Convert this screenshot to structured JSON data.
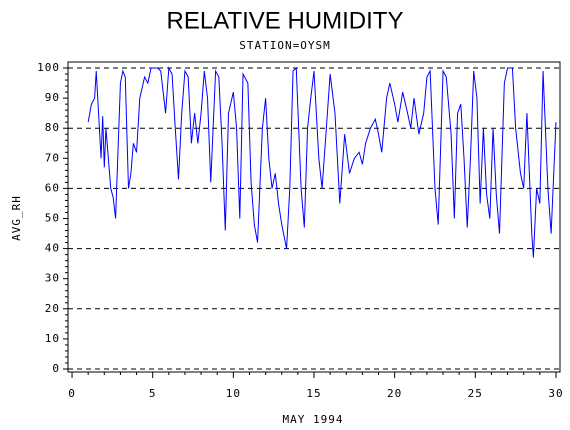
{
  "chart_data": {
    "type": "line",
    "title": "RELATIVE HUMIDITY",
    "subtitle": "STATION=OYSM",
    "x_label": "MAY 1994",
    "y_label": "AVG_RH",
    "xlim": [
      -0.25,
      30.25
    ],
    "xticks": [
      0,
      5,
      10,
      15,
      20,
      25,
      30
    ],
    "ylim": [
      -1,
      102
    ],
    "yticks": [
      0,
      10,
      20,
      30,
      40,
      50,
      60,
      70,
      80,
      90,
      100
    ],
    "grid": true,
    "grid_every": 2,
    "minor_ticks": 5,
    "series": [
      {
        "name": "AVG_RH",
        "color": "#0000ff",
        "x": [
          1,
          1.2,
          1.4,
          1.5,
          1.8,
          1.9,
          2.0,
          2.1,
          2.4,
          2.55,
          2.7,
          3.0,
          3.15,
          3.3,
          3.5,
          3.65,
          3.8,
          4.0,
          4.2,
          4.5,
          4.7,
          4.9,
          5.3,
          5.5,
          5.8,
          6.0,
          6.2,
          6.4,
          6.6,
          6.8,
          7.0,
          7.2,
          7.4,
          7.6,
          7.8,
          8.0,
          8.2,
          8.4,
          8.6,
          8.9,
          9.1,
          9.3,
          9.5,
          9.7,
          10.0,
          10.2,
          10.4,
          10.6,
          10.9,
          11.1,
          11.3,
          11.5,
          11.8,
          12.0,
          12.2,
          12.4,
          12.6,
          12.8,
          13.0,
          13.3,
          13.5,
          13.7,
          13.9,
          14.2,
          14.4,
          14.6,
          14.8,
          15.0,
          15.3,
          15.5,
          15.7,
          16.0,
          16.3,
          16.6,
          16.9,
          17.2,
          17.5,
          17.8,
          18.0,
          18.2,
          18.5,
          18.8,
          19.0,
          19.2,
          19.5,
          19.7,
          20.0,
          20.2,
          20.5,
          20.8,
          21.0,
          21.2,
          21.5,
          21.8,
          22.0,
          22.2,
          22.5,
          22.7,
          23.0,
          23.2,
          23.5,
          23.7,
          23.9,
          24.1,
          24.3,
          24.5,
          24.7,
          24.9,
          25.1,
          25.3,
          25.5,
          25.7,
          25.9,
          26.1,
          26.3,
          26.5,
          26.8,
          27.0,
          27.3,
          27.5,
          27.8,
          28.0,
          28.2,
          28.5,
          28.6,
          28.8,
          29.0,
          29.2,
          29.5,
          29.7,
          30.0
        ],
        "values": [
          82,
          88,
          90,
          99,
          70,
          84,
          67,
          80,
          60,
          57,
          50,
          95,
          99,
          97,
          60,
          65,
          75,
          72,
          90,
          97,
          95,
          100,
          100,
          99,
          85,
          100,
          98,
          80,
          63,
          85,
          99,
          97,
          75,
          85,
          75,
          85,
          99,
          90,
          62,
          99,
          97,
          75,
          46,
          85,
          92,
          80,
          50,
          98,
          95,
          62,
          48,
          42,
          80,
          90,
          70,
          60,
          65,
          55,
          48,
          40,
          60,
          99,
          100,
          60,
          47,
          80,
          90,
          99,
          70,
          60,
          75,
          98,
          85,
          55,
          78,
          65,
          70,
          72,
          68,
          75,
          80,
          83,
          78,
          72,
          90,
          95,
          88,
          82,
          92,
          85,
          80,
          90,
          78,
          85,
          97,
          99,
          60,
          48,
          99,
          97,
          78,
          50,
          85,
          88,
          70,
          47,
          70,
          99,
          90,
          55,
          80,
          58,
          50,
          80,
          58,
          45,
          95,
          100,
          100,
          80,
          65,
          60,
          85,
          45,
          37,
          60,
          55,
          99,
          60,
          45,
          82
        ]
      }
    ]
  }
}
